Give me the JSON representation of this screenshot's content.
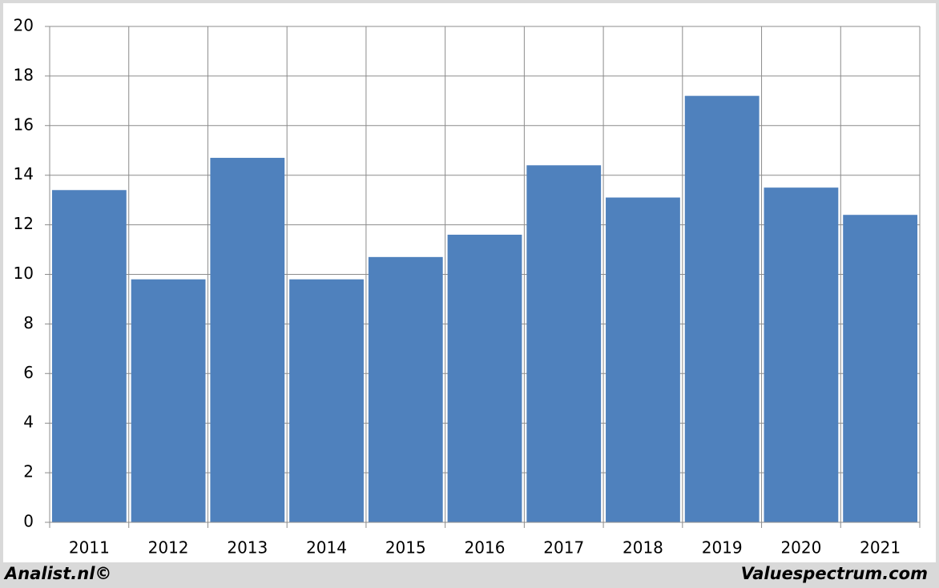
{
  "chart_data": {
    "type": "bar",
    "categories": [
      "2011",
      "2012",
      "2013",
      "2014",
      "2015",
      "2016",
      "2017",
      "2018",
      "2019",
      "2020",
      "2021"
    ],
    "values": [
      13.4,
      9.8,
      14.7,
      9.8,
      10.7,
      11.6,
      14.4,
      13.1,
      17.2,
      13.5,
      12.4
    ],
    "color": "#4f81bd",
    "ylim": [
      0,
      20
    ],
    "yticks": [
      0,
      2,
      4,
      6,
      8,
      10,
      12,
      14,
      16,
      18,
      20
    ],
    "grid": true,
    "annotations": [
      "Analist.nl©",
      "Valuespectrum.com"
    ]
  }
}
